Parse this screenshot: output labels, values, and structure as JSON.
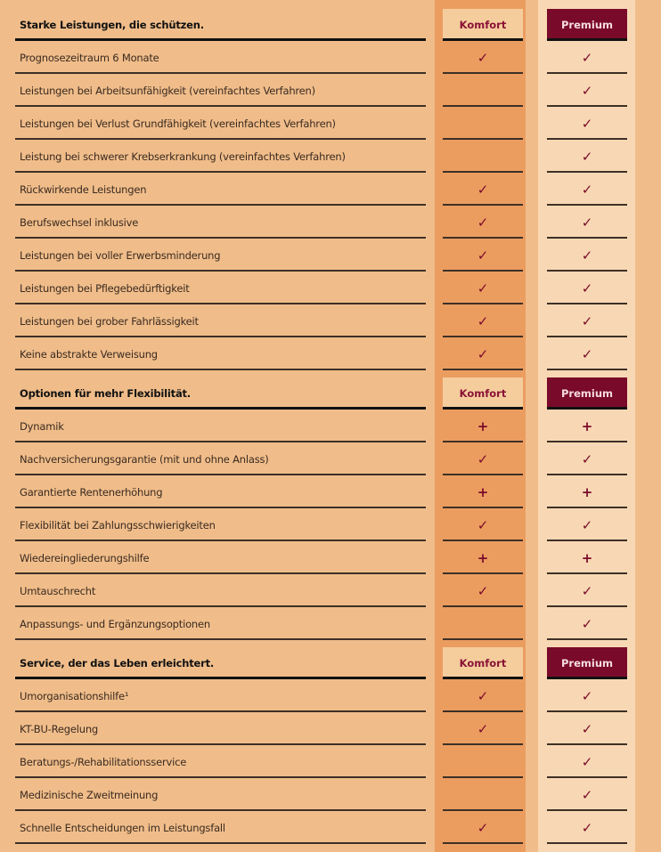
{
  "colors": {
    "background": "#f0bd8a",
    "komfort_column": "#eb9d60",
    "premium_column": "#f8d8b4",
    "premium_header": "#7a0a2a",
    "mark": "#7a0a2a"
  },
  "sections": [
    {
      "title": "Starke Leistungen, die schützen.",
      "komfort": "Komfort",
      "premium": "Premium",
      "rows": [
        {
          "label": "Prognosezeitraum 6 Monate",
          "komfort": "check",
          "premium": "check"
        },
        {
          "label": "Leistungen bei Arbeitsunfähigkeit (vereinfachtes Verfahren)",
          "komfort": "",
          "premium": "check"
        },
        {
          "label": "Leistungen bei Verlust Grundfähigkeit (vereinfachtes Verfahren)",
          "komfort": "",
          "premium": "check"
        },
        {
          "label": "Leistung bei schwerer Krebserkrankung (vereinfachtes Verfahren)",
          "komfort": "",
          "premium": "check"
        },
        {
          "label": "Rückwirkende Leistungen",
          "komfort": "check",
          "premium": "check"
        },
        {
          "label": "Berufswechsel inklusive",
          "komfort": "check",
          "premium": "check"
        },
        {
          "label": "Leistungen bei voller Erwerbsminderung",
          "komfort": "check",
          "premium": "check"
        },
        {
          "label": "Leistungen bei Pflegebedürftigkeit",
          "komfort": "check",
          "premium": "check"
        },
        {
          "label": "Leistungen bei grober Fahrlässigkeit",
          "komfort": "check",
          "premium": "check"
        },
        {
          "label": "Keine abstrakte Verweisung",
          "komfort": "check",
          "premium": "check"
        }
      ]
    },
    {
      "title": "Optionen für mehr Flexibilität.",
      "komfort": "Komfort",
      "premium": "Premium",
      "rows": [
        {
          "label": "Dynamik",
          "komfort": "plus",
          "premium": "plus"
        },
        {
          "label": "Nachversicherungsgarantie (mit und ohne Anlass)",
          "komfort": "check",
          "premium": "check"
        },
        {
          "label": "Garantierte Rentenerhöhung",
          "komfort": "plus",
          "premium": "plus"
        },
        {
          "label": "Flexibilität bei Zahlungsschwierigkeiten",
          "komfort": "check",
          "premium": "check"
        },
        {
          "label": "Wiedereingliederungshilfe",
          "komfort": "plus",
          "premium": "plus"
        },
        {
          "label": "Umtauschrecht",
          "komfort": "check",
          "premium": "check"
        },
        {
          "label": "Anpassungs- und Ergänzungsoptionen",
          "komfort": "",
          "premium": "check"
        }
      ]
    },
    {
      "title": "Service, der das Leben erleichtert.",
      "komfort": "Komfort",
      "premium": "Premium",
      "rows": [
        {
          "label": "Umorganisationshilfe¹",
          "komfort": "check",
          "premium": "check"
        },
        {
          "label": "KT-BU-Regelung",
          "komfort": "check",
          "premium": "check"
        },
        {
          "label": "Beratungs-/Rehabilitationsservice",
          "komfort": "",
          "premium": "check"
        },
        {
          "label": "Medizinische Zweitmeinung",
          "komfort": "",
          "premium": "check"
        },
        {
          "label": "Schnelle Entscheidungen im Leistungsfall",
          "komfort": "check",
          "premium": "check"
        }
      ]
    }
  ]
}
